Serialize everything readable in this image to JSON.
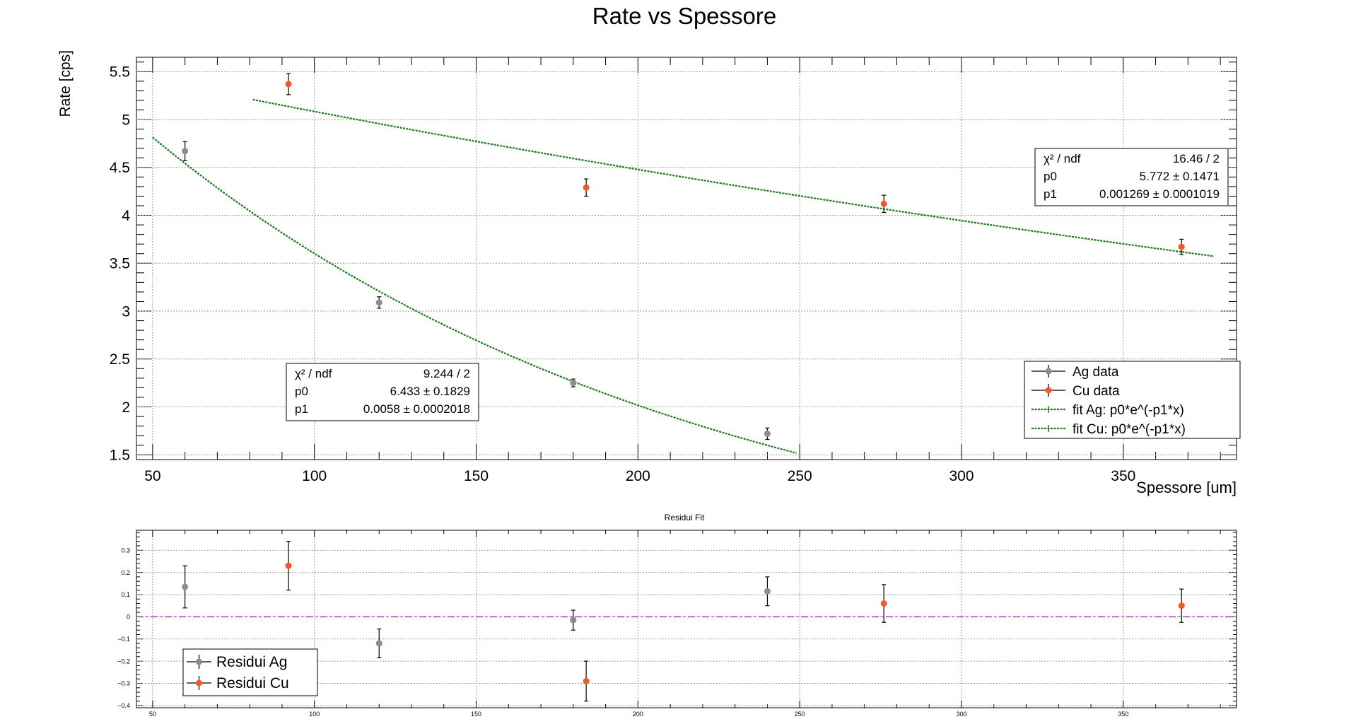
{
  "chart_data": [
    {
      "type": "scatter",
      "title": "Rate vs Spessore",
      "xlabel": "Spessore [um]",
      "ylabel": "Rate [cps]",
      "xlim": [
        45,
        385
      ],
      "ylim": [
        1.45,
        5.65
      ],
      "x_ticks": [
        50,
        100,
        150,
        200,
        250,
        300,
        350
      ],
      "y_ticks": [
        1.5,
        2,
        2.5,
        3,
        3.5,
        4,
        4.5,
        5,
        5.5
      ],
      "x_tick_labels": [
        "50",
        "100",
        "150",
        "200",
        "250",
        "300",
        "350"
      ],
      "y_tick_labels": [
        "1.5",
        "2",
        "2.5",
        "3",
        "3.5",
        "4",
        "4.5",
        "5",
        "5.5"
      ],
      "grid": true,
      "legend_position": "bottom-right",
      "legend": [
        "Ag data",
        "Cu data",
        "fit Ag: p0*e^(-p1*x)",
        "fit Cu: p0*e^(-p1*x)"
      ],
      "series": [
        {
          "name": "Ag data",
          "color": "#8c8c8c",
          "points": [
            {
              "x": 60,
              "y": 4.67,
              "err": 0.1
            },
            {
              "x": 120,
              "y": 3.09,
              "err": 0.06
            },
            {
              "x": 180,
              "y": 2.25,
              "err": 0.04
            },
            {
              "x": 240,
              "y": 1.72,
              "err": 0.06
            }
          ]
        },
        {
          "name": "Cu data",
          "color": "#f05a28",
          "points": [
            {
              "x": 92,
              "y": 5.37,
              "err": 0.11
            },
            {
              "x": 184,
              "y": 4.29,
              "err": 0.09
            },
            {
              "x": 276,
              "y": 4.12,
              "err": 0.09
            },
            {
              "x": 368,
              "y": 3.67,
              "err": 0.08
            }
          ]
        }
      ],
      "fits": [
        {
          "name": "fit Ag: p0*e^(-p1*x)",
          "color": "#1a7a1a",
          "p0": 6.433,
          "p1": 0.0058,
          "x_range": [
            50,
            249
          ]
        },
        {
          "name": "fit Cu: p0*e^(-p1*x)",
          "color": "#1a7a1a",
          "p0": 5.772,
          "p1": 0.001269,
          "x_range": [
            81,
            378
          ]
        }
      ],
      "stat_boxes": [
        {
          "rows": [
            {
              "label": "χ² / ndf",
              "value": "16.46 / 2"
            },
            {
              "label": "p0",
              "value": "5.772 ± 0.1471"
            },
            {
              "label": "p1",
              "value": "0.001269 ± 0.0001019"
            }
          ]
        },
        {
          "rows": [
            {
              "label": "χ² / ndf",
              "value": "9.244 / 2"
            },
            {
              "label": "p0",
              "value": "6.433 ± 0.1829"
            },
            {
              "label": "p1",
              "value": "0.0058 ± 0.0002018"
            }
          ]
        }
      ]
    },
    {
      "type": "scatter",
      "title": "Residui Fit",
      "xlabel": "",
      "ylabel": "",
      "xlim": [
        45,
        385
      ],
      "ylim": [
        -0.41,
        0.39
      ],
      "x_ticks": [
        50,
        100,
        150,
        200,
        250,
        300,
        350
      ],
      "y_ticks": [
        -0.4,
        -0.3,
        -0.2,
        -0.1,
        0,
        0.1,
        0.2,
        0.3
      ],
      "x_tick_labels": [
        "50",
        "100",
        "150",
        "200",
        "250",
        "300",
        "350"
      ],
      "y_tick_labels": [
        "−0.4",
        "−0.3",
        "−0.2",
        "−0.1",
        "0",
        "0.1",
        "0.2",
        "0.3"
      ],
      "grid": true,
      "legend_position": "bottom-left",
      "legend": [
        "Residui Ag",
        "Residui Cu"
      ],
      "zero_line_color": "#b030c0",
      "series": [
        {
          "name": "Residui Ag",
          "color": "#8c8c8c",
          "points": [
            {
              "x": 60,
              "y": 0.135,
              "err": 0.095
            },
            {
              "x": 120,
              "y": -0.12,
              "err": 0.065
            },
            {
              "x": 180,
              "y": -0.015,
              "err": 0.045
            },
            {
              "x": 240,
              "y": 0.115,
              "err": 0.065
            }
          ]
        },
        {
          "name": "Residui Cu",
          "color": "#f05a28",
          "points": [
            {
              "x": 92,
              "y": 0.23,
              "err": 0.11
            },
            {
              "x": 184,
              "y": -0.29,
              "err": 0.09
            },
            {
              "x": 276,
              "y": 0.06,
              "err": 0.085
            },
            {
              "x": 368,
              "y": 0.05,
              "err": 0.075
            }
          ]
        }
      ]
    }
  ]
}
